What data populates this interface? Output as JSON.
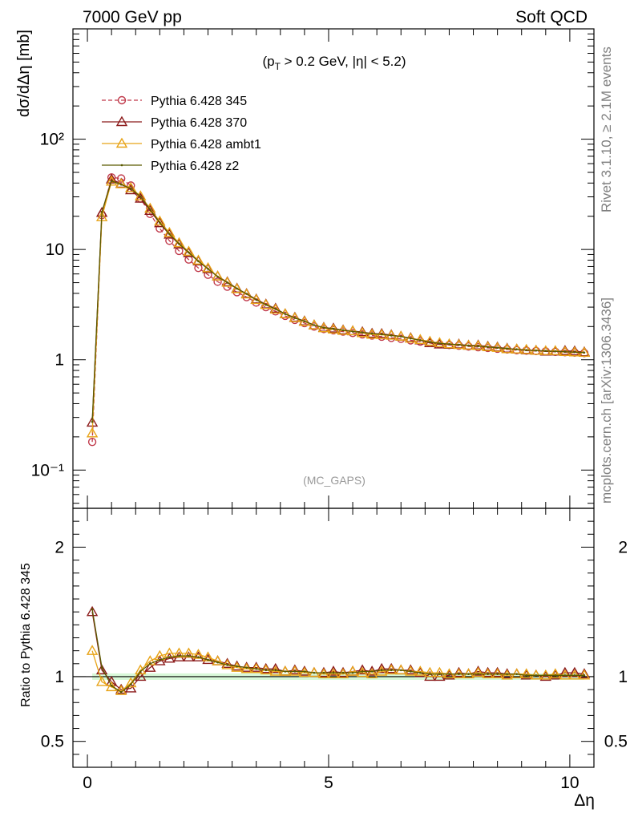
{
  "header": {
    "left": "7000 GeV pp",
    "right": "Soft QCD"
  },
  "side": {
    "rivet": "Rivet 3.1.10, ≥ 2.1M events",
    "source": "mcplots.cern.ch [arXiv:1306.3436]"
  },
  "chart_data": {
    "type": "line",
    "title_pre": "(p",
    "title_sub": "T",
    "title_post": " > 0.2 GeV, |η| < 5.2)",
    "watermark": "(MC_GAPS)",
    "xlabel": "Δη",
    "ylabel": "dσ/dΔη [mb]",
    "ratio_ylabel": "Ratio to Pythia 6.428 345",
    "xlim": [
      -0.3,
      10.5
    ],
    "ylim": [
      0.045,
      1000
    ],
    "yscale": "log",
    "ratio_ylim": [
      0.3,
      2.3
    ],
    "x_ticks": [
      "0",
      "5",
      "10"
    ],
    "y_ticks": [
      "10⁻¹",
      "1",
      "10",
      "10²"
    ],
    "ratio_ticks": [
      "0.5",
      "1",
      "2"
    ],
    "legend_position": "top-left",
    "series": [
      {
        "name": "Pythia 6.428 345",
        "color": "#c0394a",
        "marker": "circle",
        "dashed": true
      },
      {
        "name": "Pythia 6.428 370",
        "color": "#8b1a1a",
        "marker": "triangle",
        "dashed": false
      },
      {
        "name": "Pythia 6.428 ambt1",
        "color": "#e8a317",
        "marker": "triangle",
        "dashed": false
      },
      {
        "name": "Pythia 6.428 z2",
        "color": "#5a5a00",
        "marker": "dot",
        "dashed": false
      }
    ],
    "x": [
      0.1,
      0.3,
      0.5,
      0.7,
      0.9,
      1.1,
      1.3,
      1.5,
      1.7,
      1.9,
      2.1,
      2.3,
      2.5,
      2.7,
      2.9,
      3.1,
      3.3,
      3.5,
      3.7,
      3.9,
      4.1,
      4.3,
      4.5,
      4.7,
      4.9,
      5.1,
      5.3,
      5.5,
      5.7,
      5.9,
      6.1,
      6.3,
      6.5,
      6.7,
      6.9,
      7.1,
      7.3,
      7.5,
      7.7,
      7.9,
      8.1,
      8.3,
      8.5,
      8.7,
      8.9,
      9.1,
      9.3,
      9.5,
      9.7,
      9.9,
      10.1,
      10.3
    ],
    "base": [
      0.18,
      20.5,
      45,
      44,
      38,
      29,
      21,
      15.5,
      12,
      9.7,
      8.1,
      6.8,
      5.9,
      5.1,
      4.6,
      4.1,
      3.7,
      3.3,
      3.0,
      2.75,
      2.5,
      2.3,
      2.15,
      2.0,
      1.9,
      1.85,
      1.8,
      1.75,
      1.7,
      1.66,
      1.62,
      1.58,
      1.55,
      1.5,
      1.46,
      1.42,
      1.38,
      1.36,
      1.34,
      1.32,
      1.3,
      1.28,
      1.26,
      1.24,
      1.22,
      1.21,
      1.2,
      1.19,
      1.18,
      1.17,
      1.16,
      1.15
    ],
    "ratios": {
      "Pythia 6.428 370": [
        1.5,
        1.05,
        0.96,
        0.9,
        0.91,
        1.0,
        1.07,
        1.12,
        1.14,
        1.15,
        1.15,
        1.15,
        1.13,
        1.12,
        1.1,
        1.08,
        1.07,
        1.07,
        1.06,
        1.06,
        1.04,
        1.05,
        1.04,
        1.03,
        1.03,
        1.04,
        1.03,
        1.04,
        1.05,
        1.04,
        1.06,
        1.06,
        1.05,
        1.05,
        1.03,
        1.0,
        1.0,
        1.01,
        1.03,
        1.02,
        1.04,
        1.03,
        1.03,
        1.02,
        1.02,
        1.01,
        1.01,
        1.0,
        1.01,
        1.03,
        1.03,
        1.02
      ],
      "Pythia 6.428 ambt1": [
        1.2,
        0.96,
        0.92,
        0.89,
        0.95,
        1.05,
        1.12,
        1.16,
        1.18,
        1.18,
        1.18,
        1.17,
        1.15,
        1.12,
        1.09,
        1.07,
        1.06,
        1.06,
        1.05,
        1.04,
        1.04,
        1.04,
        1.03,
        1.03,
        1.02,
        1.02,
        1.02,
        1.04,
        1.03,
        1.02,
        1.04,
        1.05,
        1.05,
        1.04,
        1.04,
        1.03,
        1.03,
        1.02,
        1.02,
        1.02,
        1.03,
        1.02,
        1.02,
        1.01,
        1.02,
        1.02,
        1.01,
        1.01,
        1.02,
        1.01,
        1.01,
        1.01
      ],
      "Pythia 6.428 z2": [
        1.52,
        1.07,
        0.93,
        0.88,
        0.94,
        1.04,
        1.1,
        1.13,
        1.15,
        1.16,
        1.16,
        1.15,
        1.13,
        1.11,
        1.09,
        1.08,
        1.07,
        1.06,
        1.05,
        1.05,
        1.04,
        1.04,
        1.04,
        1.03,
        1.03,
        1.03,
        1.03,
        1.03,
        1.04,
        1.04,
        1.05,
        1.05,
        1.05,
        1.04,
        1.03,
        1.02,
        1.02,
        1.02,
        1.02,
        1.02,
        1.02,
        1.02,
        1.02,
        1.02,
        1.02,
        1.01,
        1.01,
        1.01,
        1.01,
        1.01,
        1.01,
        1.01
      ]
    }
  }
}
